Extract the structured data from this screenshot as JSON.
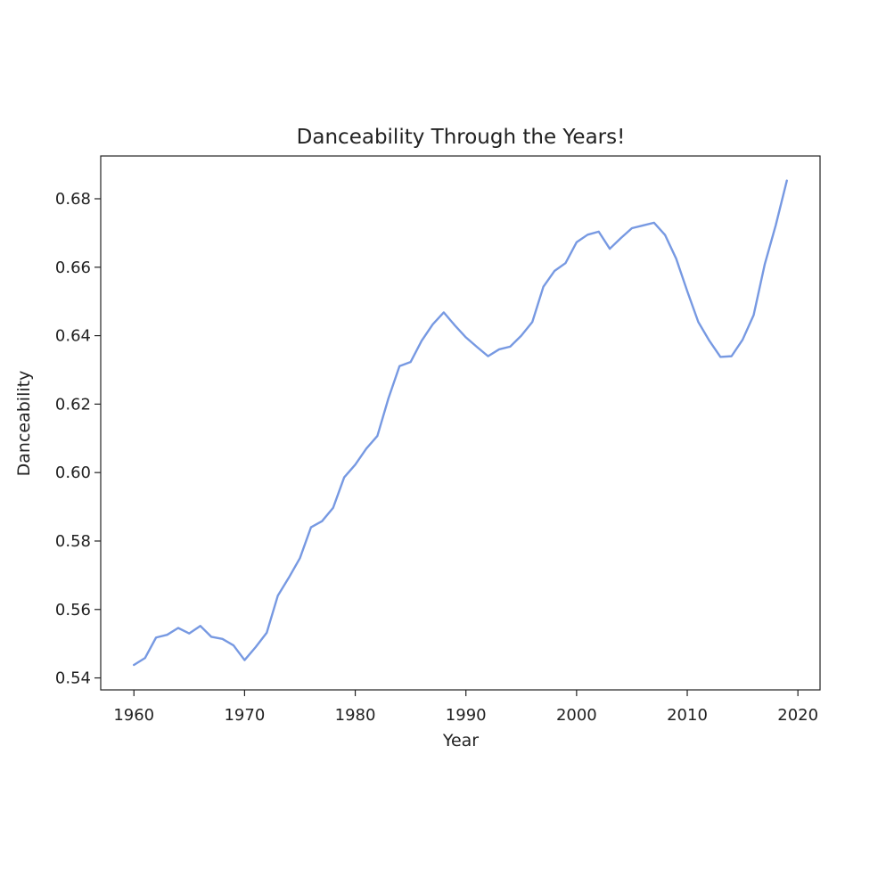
{
  "chart_data": {
    "type": "line",
    "title": "Danceability Through the Years!",
    "xlabel": "Year",
    "ylabel": "Danceability",
    "xlim": [
      1957,
      2022
    ],
    "ylim": [
      0.5365,
      0.6925
    ],
    "xticks": [
      1960,
      1970,
      1980,
      1990,
      2000,
      2010,
      2020
    ],
    "xtick_labels": [
      "1960",
      "1970",
      "1980",
      "1990",
      "2000",
      "2010",
      "2020"
    ],
    "yticks": [
      0.54,
      0.56,
      0.58,
      0.6,
      0.62,
      0.64,
      0.66,
      0.68
    ],
    "ytick_labels": [
      "0.54",
      "0.56",
      "0.58",
      "0.60",
      "0.62",
      "0.64",
      "0.66",
      "0.68"
    ],
    "grid": false,
    "series": [
      {
        "color": "#7799e2",
        "x": [
          1960,
          1961,
          1962,
          1963,
          1964,
          1965,
          1966,
          1967,
          1968,
          1969,
          1970,
          1971,
          1972,
          1973,
          1974,
          1975,
          1976,
          1977,
          1978,
          1979,
          1980,
          1981,
          1982,
          1983,
          1984,
          1985,
          1986,
          1987,
          1988,
          1989,
          1990,
          1991,
          1992,
          1993,
          1994,
          1995,
          1996,
          1997,
          1998,
          1999,
          2000,
          2001,
          2002,
          2003,
          2004,
          2005,
          2006,
          2007,
          2008,
          2009,
          2010,
          2011,
          2012,
          2013,
          2014,
          2015,
          2016,
          2017,
          2018,
          2019
        ],
        "y": [
          0.5438,
          0.5458,
          0.5518,
          0.5526,
          0.5546,
          0.553,
          0.5552,
          0.552,
          0.5514,
          0.5495,
          0.5452,
          0.549,
          0.5532,
          0.564,
          0.5693,
          0.575,
          0.584,
          0.5858,
          0.5897,
          0.5986,
          0.6023,
          0.607,
          0.6107,
          0.6217,
          0.6311,
          0.6323,
          0.6385,
          0.6433,
          0.6468,
          0.643,
          0.6395,
          0.6367,
          0.634,
          0.636,
          0.6368,
          0.64,
          0.644,
          0.6543,
          0.6589,
          0.6612,
          0.6673,
          0.6695,
          0.6704,
          0.6654,
          0.6685,
          0.6714,
          0.6722,
          0.673,
          0.6694,
          0.6625,
          0.653,
          0.644,
          0.6385,
          0.6338,
          0.634,
          0.6388,
          0.646,
          0.6608,
          0.6723,
          0.6853
        ]
      }
    ]
  }
}
